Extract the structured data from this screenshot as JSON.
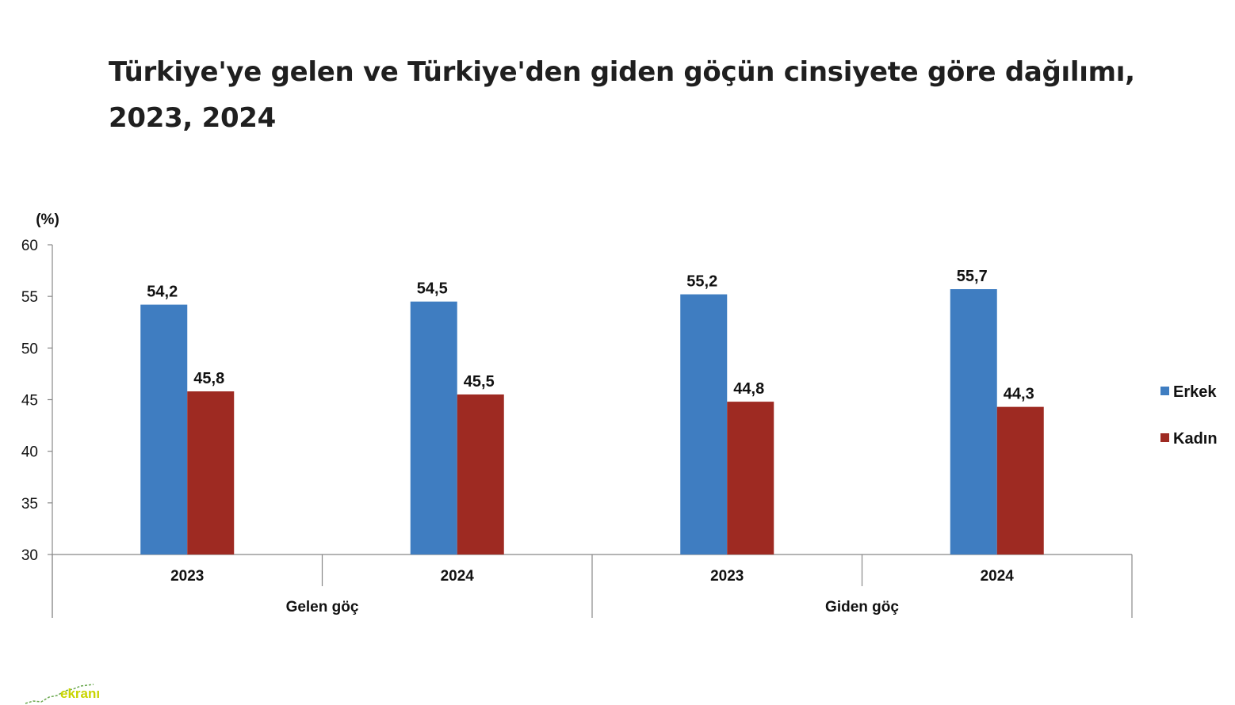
{
  "chart_data": {
    "type": "bar",
    "title": "Türkiye'ye gelen ve Türkiye'den giden göçün cinsiyete göre dağılımı, 2023, 2024",
    "ylabel": "(%)",
    "ylim": [
      30,
      60
    ],
    "yticks": [
      30,
      35,
      40,
      45,
      50,
      55,
      60
    ],
    "groups": [
      {
        "label": "Gelen göç",
        "categories": [
          "2023",
          "2024"
        ]
      },
      {
        "label": "Giden göç",
        "categories": [
          "2023",
          "2024"
        ]
      }
    ],
    "categories": [
      "2023",
      "2024",
      "2023",
      "2024"
    ],
    "series": [
      {
        "name": "Erkek",
        "color": "#3f7dc1",
        "values": [
          54.2,
          54.5,
          55.2,
          55.7
        ],
        "labels": [
          "54,2",
          "54,5",
          "55,2",
          "55,7"
        ]
      },
      {
        "name": "Kadın",
        "color": "#9e2a22",
        "values": [
          45.8,
          45.5,
          44.8,
          44.3
        ],
        "labels": [
          "45,8",
          "45,5",
          "44,8",
          "44,3"
        ]
      }
    ],
    "legend_position": "right",
    "grid": false
  },
  "logo": {
    "text": "ekranı"
  }
}
